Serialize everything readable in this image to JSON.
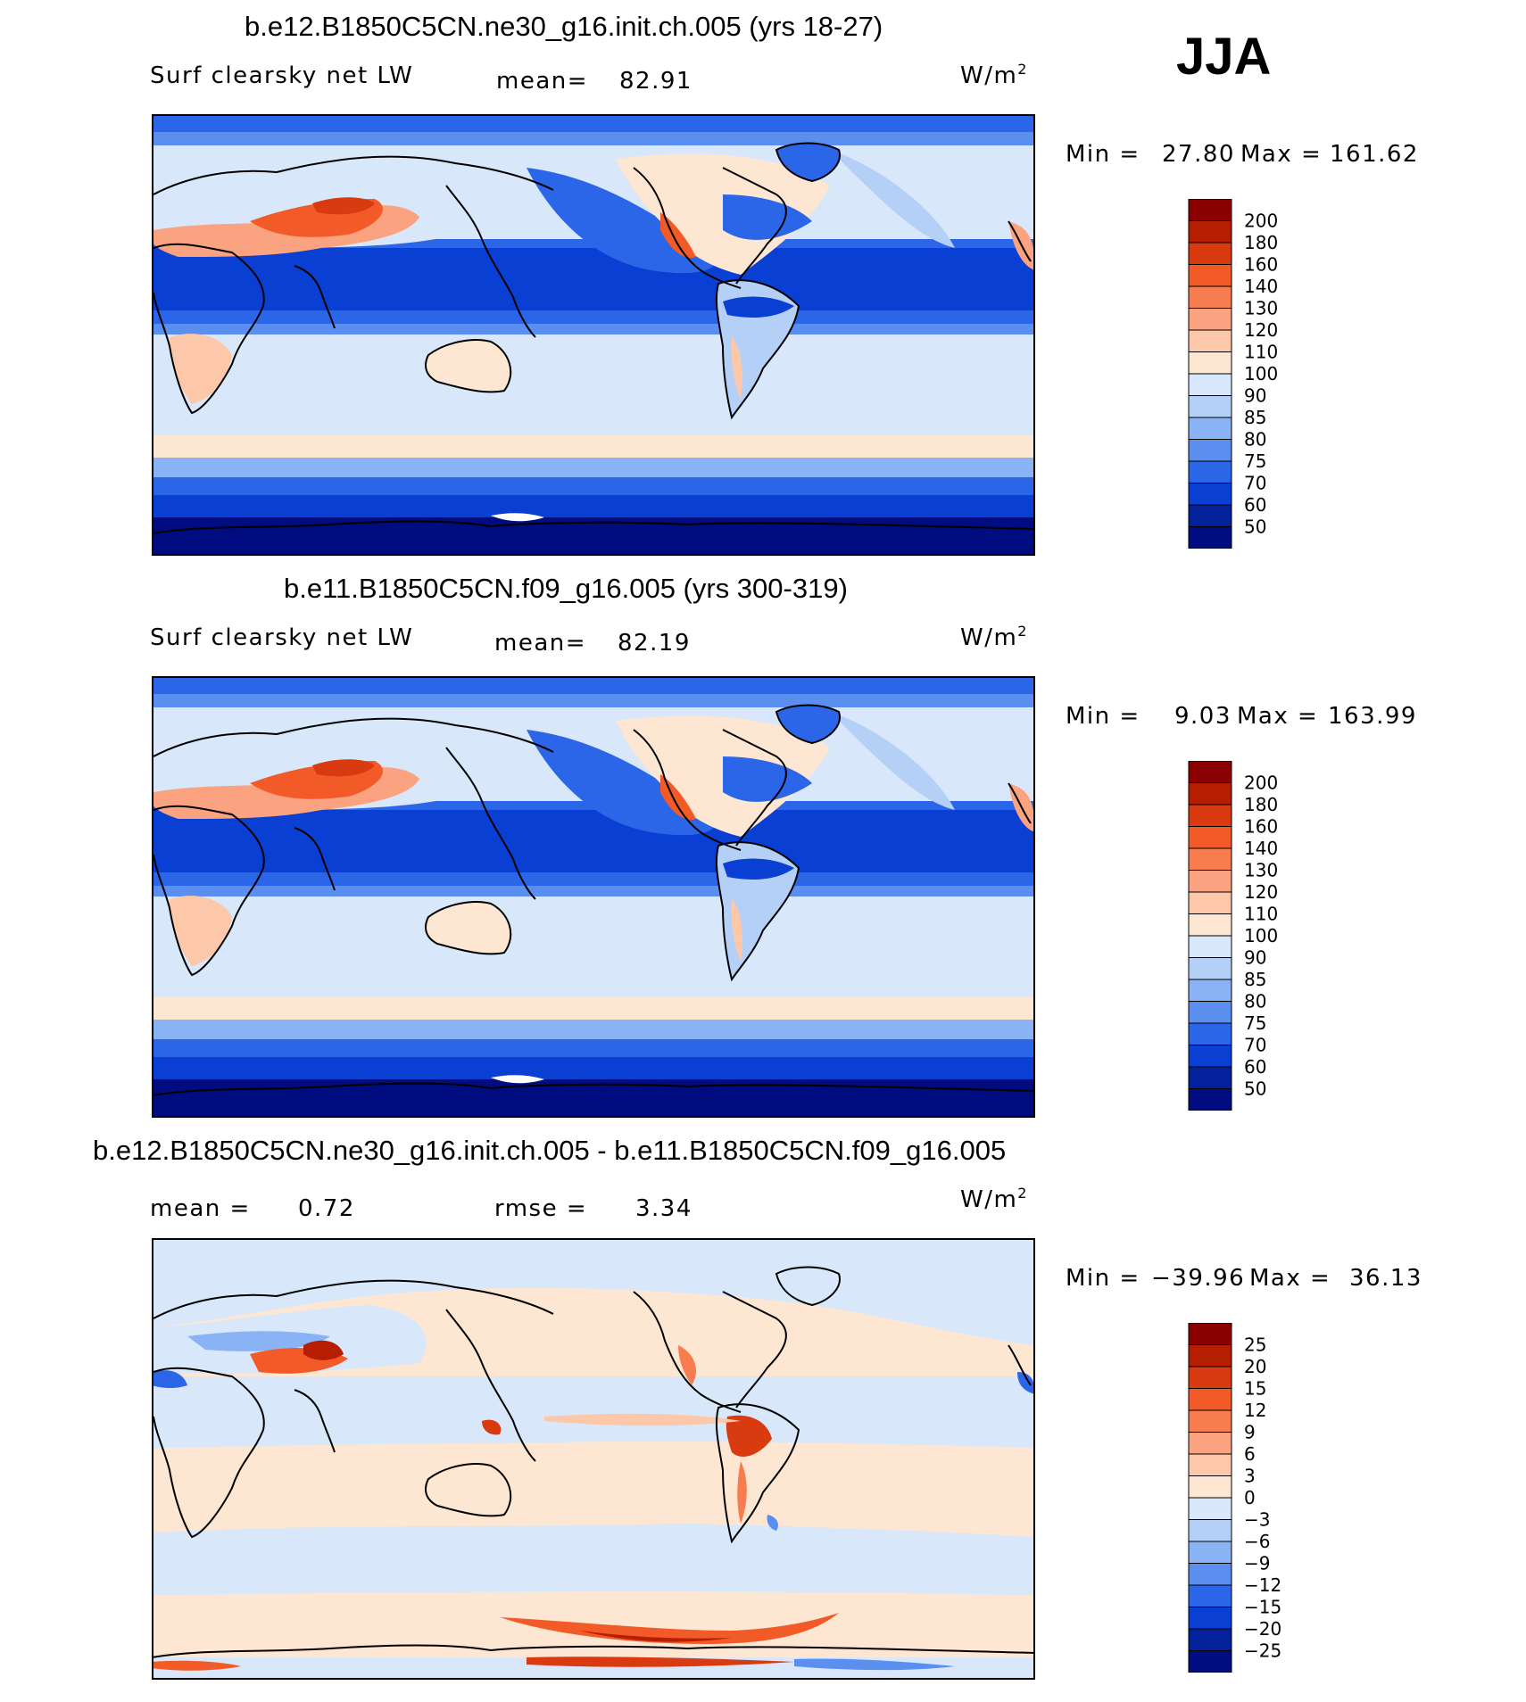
{
  "season": "JJA",
  "units": "W/m",
  "units_sup": "2",
  "panels": [
    {
      "title": "b.e12.B1850C5CN.ne30_g16.init.ch.005 (yrs 18-27)",
      "variable": "Surf clearsky net LW",
      "mean_label": "mean=",
      "mean_value": "82.91",
      "min_label": "Min =",
      "min_value": "27.80",
      "max_label": "Max =",
      "max_value": "161.62"
    },
    {
      "title": "b.e11.B1850C5CN.f09_g16.005 (yrs 300-319)",
      "variable": "Surf clearsky net LW",
      "mean_label": "mean=",
      "mean_value": "82.19",
      "min_label": "Min =",
      "min_value": "9.03",
      "max_label": "Max =",
      "max_value": "163.99"
    },
    {
      "title": "b.e12.B1850C5CN.ne30_g16.init.ch.005 - b.e11.B1850C5CN.f09_g16.005",
      "mean_label": "mean =",
      "mean_value": "0.72",
      "rmse_label": "rmse =",
      "rmse_value": "3.34",
      "min_label": "Min =",
      "min_value": "−39.96",
      "max_label": "Max =",
      "max_value": "36.13"
    }
  ],
  "chart_data": [
    {
      "type": "heatmap",
      "title": "b.e12.B1850C5CN.ne30_g16.init.ch.005 (yrs 18-27)",
      "levels": [
        "200",
        "180",
        "160",
        "140",
        "130",
        "120",
        "110",
        "100",
        "90",
        "85",
        "80",
        "75",
        "70",
        "60",
        "50"
      ],
      "colors": [
        "#8b0000",
        "#b51e00",
        "#d93a10",
        "#f25a28",
        "#f77c50",
        "#fba280",
        "#fdc8aa",
        "#fde6d2",
        "#d8e8fa",
        "#b4d0f7",
        "#8ab3f5",
        "#5a8ff0",
        "#2c66e8",
        "#0a3fd4",
        "#03219a",
        "#000c80"
      ],
      "mean": 82.91,
      "min": 27.8,
      "max": 161.62
    },
    {
      "type": "heatmap",
      "title": "b.e11.B1850C5CN.f09_g16.005 (yrs 300-319)",
      "levels": [
        "200",
        "180",
        "160",
        "140",
        "130",
        "120",
        "110",
        "100",
        "90",
        "85",
        "80",
        "75",
        "70",
        "60",
        "50"
      ],
      "colors": [
        "#8b0000",
        "#b51e00",
        "#d93a10",
        "#f25a28",
        "#f77c50",
        "#fba280",
        "#fdc8aa",
        "#fde6d2",
        "#d8e8fa",
        "#b4d0f7",
        "#8ab3f5",
        "#5a8ff0",
        "#2c66e8",
        "#0a3fd4",
        "#03219a",
        "#000c80"
      ],
      "mean": 82.19,
      "min": 9.03,
      "max": 163.99
    },
    {
      "type": "heatmap",
      "title": "b.e12.B1850C5CN.ne30_g16.init.ch.005 - b.e11.B1850C5CN.f09_g16.005",
      "levels": [
        "25",
        "20",
        "15",
        "12",
        "9",
        "6",
        "3",
        "0",
        "−3",
        "−6",
        "−9",
        "−12",
        "−15",
        "−20",
        "−25"
      ],
      "colors": [
        "#8b0000",
        "#b51e00",
        "#d93a10",
        "#f25a28",
        "#f77c50",
        "#fba280",
        "#fdc8aa",
        "#fde6d2",
        "#d8e8fa",
        "#b4d0f7",
        "#8ab3f5",
        "#5a8ff0",
        "#2c66e8",
        "#0a3fd4",
        "#03219a",
        "#000c80"
      ],
      "mean": 0.72,
      "rmse": 3.34,
      "min": -39.96,
      "max": 36.13
    }
  ]
}
